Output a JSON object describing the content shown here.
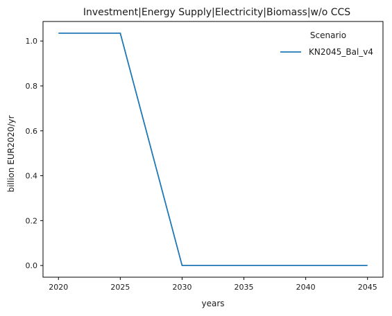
{
  "chart_data": {
    "type": "line",
    "title": "Investment|Energy Supply|Electricity|Biomass|w/o CCS",
    "xlabel": "years",
    "ylabel": "billion EUR2020/yr",
    "xlim": [
      2018.75,
      2046.25
    ],
    "ylim": [
      -0.052,
      1.087
    ],
    "x_ticks": [
      2020,
      2025,
      2030,
      2035,
      2040,
      2045
    ],
    "y_ticks": [
      0.0,
      0.2,
      0.4,
      0.6,
      0.8,
      1.0
    ],
    "y_tick_labels": [
      "0.0",
      "0.2",
      "0.4",
      "0.6",
      "0.8",
      "1.0"
    ],
    "grid": false,
    "legend": {
      "title": "Scenario",
      "placement": "top-right"
    },
    "series": [
      {
        "name": "KN2045_Bal_v4",
        "color": "#1f77b4",
        "x": [
          2020,
          2025,
          2030,
          2035,
          2040,
          2045
        ],
        "y": [
          1.035,
          1.035,
          0.0,
          0.0,
          0.0,
          0.0
        ]
      }
    ]
  }
}
